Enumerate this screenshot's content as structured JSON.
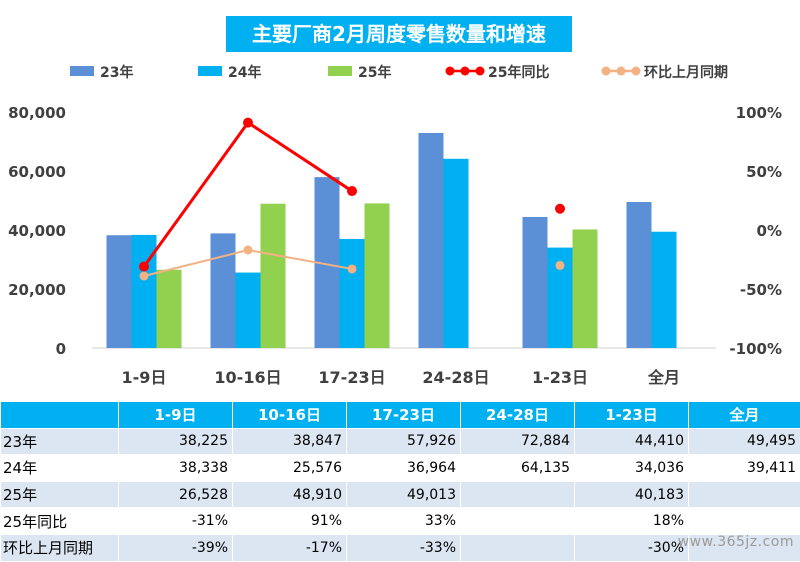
{
  "chart_data": {
    "type": "bar",
    "title": "主要厂商2月周度零售数量和增速",
    "categories": [
      "1-9日",
      "10-16日",
      "17-23日",
      "24-28日",
      "1-23日",
      "全月"
    ],
    "series": [
      {
        "name": "23年",
        "kind": "bar",
        "axis": "left",
        "color": "#5b8fd6",
        "values": [
          38225,
          38847,
          57926,
          72884,
          44410,
          49495
        ]
      },
      {
        "name": "24年",
        "kind": "bar",
        "axis": "left",
        "color": "#00b0f0",
        "values": [
          38338,
          25576,
          36964,
          64135,
          34036,
          39411
        ]
      },
      {
        "name": "25年",
        "kind": "bar",
        "axis": "left",
        "color": "#92d050",
        "values": [
          26528,
          48910,
          49013,
          null,
          40183,
          null
        ]
      },
      {
        "name": "25年同比",
        "kind": "line",
        "axis": "right",
        "color": "#ff0000",
        "values": [
          -31,
          91,
          33,
          null,
          18,
          null
        ]
      },
      {
        "name": "环比上月同期",
        "kind": "line",
        "axis": "right",
        "color": "#f4b183",
        "values": [
          -39,
          -17,
          -33,
          null,
          -30,
          null
        ]
      }
    ],
    "y_left": {
      "min": 0,
      "max": 80000,
      "ticks": [
        "0",
        "20,000",
        "40,000",
        "60,000",
        "80,000"
      ]
    },
    "y_right": {
      "min": -100,
      "max": 100,
      "ticks": [
        "-100%",
        "-50%",
        "0%",
        "50%",
        "100%"
      ]
    },
    "legend_position": "top",
    "grid": false
  },
  "table": {
    "header": [
      "",
      "1-9日",
      "10-16日",
      "17-23日",
      "24-28日",
      "1-23日",
      "全月"
    ],
    "rows": [
      {
        "label": "23年",
        "cells": [
          "38,225",
          "38,847",
          "57,926",
          "72,884",
          "44,410",
          "49,495"
        ]
      },
      {
        "label": "24年",
        "cells": [
          "38,338",
          "25,576",
          "36,964",
          "64,135",
          "34,036",
          "39,411"
        ]
      },
      {
        "label": "25年",
        "cells": [
          "26,528",
          "48,910",
          "49,013",
          "",
          "40,183",
          ""
        ]
      },
      {
        "label": "25年同比",
        "cells": [
          "-31%",
          "91%",
          "33%",
          "",
          "18%",
          ""
        ]
      },
      {
        "label": "环比上月同期",
        "cells": [
          "-39%",
          "-17%",
          "-33%",
          "",
          "-30%",
          ""
        ]
      }
    ]
  },
  "watermark": "www.365jz.com"
}
